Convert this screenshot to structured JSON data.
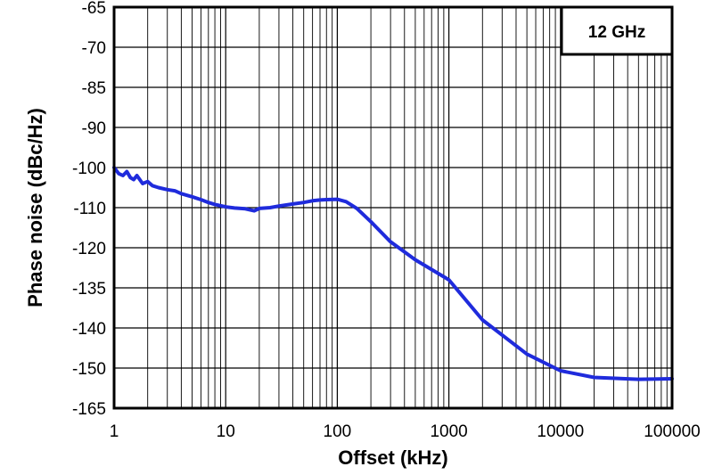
{
  "chart_data": {
    "type": "line",
    "title": "",
    "xlabel": "Offset (kHz)",
    "ylabel": "Phase noise (dBc/Hz)",
    "x_scale": "log",
    "xlim": [
      1,
      100000
    ],
    "x_ticks": [
      "1",
      "10",
      "100",
      "1000",
      "10000",
      "100000"
    ],
    "y_ticks": [
      "-65",
      "-70",
      "-85",
      "-90",
      "-100",
      "-110",
      "-120",
      "-135",
      "-140",
      "-150",
      "-165"
    ],
    "grid": true,
    "annotation": "12 GHz",
    "annotation_position": "top-right",
    "colors": {
      "series": "#1f2bdc",
      "grid": "#000000",
      "background": "#ffffff"
    },
    "series": [
      {
        "x": [
          1,
          1.1,
          1.2,
          1.3,
          1.4,
          1.5,
          1.6,
          1.8,
          2,
          2.2,
          2.5,
          3,
          3.5,
          4,
          5,
          6,
          7,
          8,
          10,
          12,
          15,
          18,
          20,
          25,
          30,
          40,
          50,
          60,
          70,
          80,
          100,
          120,
          150,
          200,
          300,
          500,
          1000,
          2000,
          5000,
          10000,
          20000,
          50000,
          100000
        ],
        "y": [
          -100,
          -101.5,
          -102,
          -101,
          -102.5,
          -103,
          -102,
          -104,
          -103.5,
          -104.5,
          -105,
          -105.5,
          -105.8,
          -106.5,
          -107.3,
          -108,
          -108.7,
          -109.2,
          -109.8,
          -110.1,
          -110.3,
          -110.8,
          -110.2,
          -110,
          -109.6,
          -109.1,
          -108.7,
          -108.3,
          -108.1,
          -108,
          -107.9,
          -108.5,
          -110.2,
          -113.5,
          -118.5,
          -124.5,
          -132,
          -139,
          -146.5,
          -151,
          -153.5,
          -154.2,
          -154
        ]
      }
    ]
  }
}
